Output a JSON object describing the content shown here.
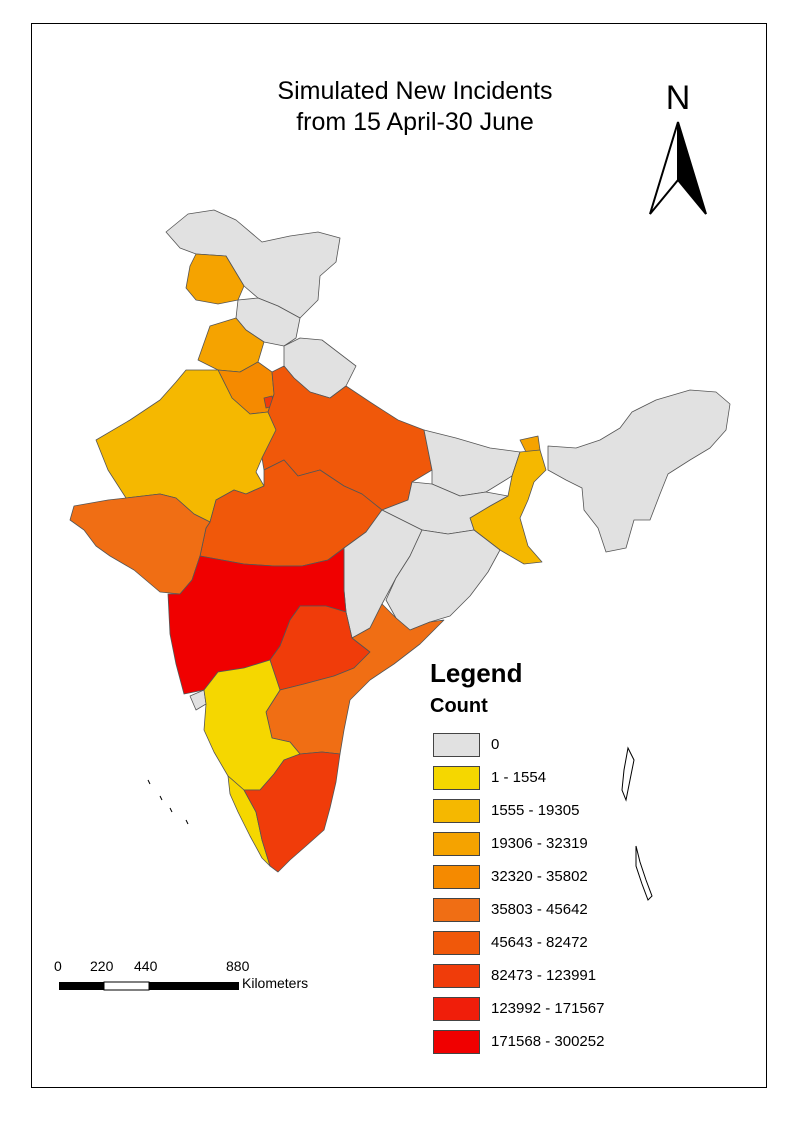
{
  "title": {
    "line1": "Simulated New Incidents",
    "line2": "from 15 April-30 June"
  },
  "north_arrow": {
    "label": "N",
    "icon": "north-arrow-icon"
  },
  "legend": {
    "title": "Legend",
    "subtitle": "Count",
    "classes": [
      {
        "label": "0",
        "color": "#e1e1e1"
      },
      {
        "label": "1 - 1554",
        "color": "#f5d700"
      },
      {
        "label": "1555 - 19305",
        "color": "#f5b800"
      },
      {
        "label": "19306 - 32319",
        "color": "#f5a300"
      },
      {
        "label": "32320 - 35802",
        "color": "#f58a00"
      },
      {
        "label": "35803 - 45642",
        "color": "#f06e14"
      },
      {
        "label": "45643 - 82472",
        "color": "#f0580a"
      },
      {
        "label": "82473 - 123991",
        "color": "#f03c0a"
      },
      {
        "label": "123992 - 171567",
        "color": "#f01e0a"
      },
      {
        "label": "171568 - 300252",
        "color": "#f00000"
      }
    ]
  },
  "scale_bar": {
    "ticks": [
      "0",
      "220",
      "440",
      "880"
    ],
    "unit": "Kilometers"
  }
}
